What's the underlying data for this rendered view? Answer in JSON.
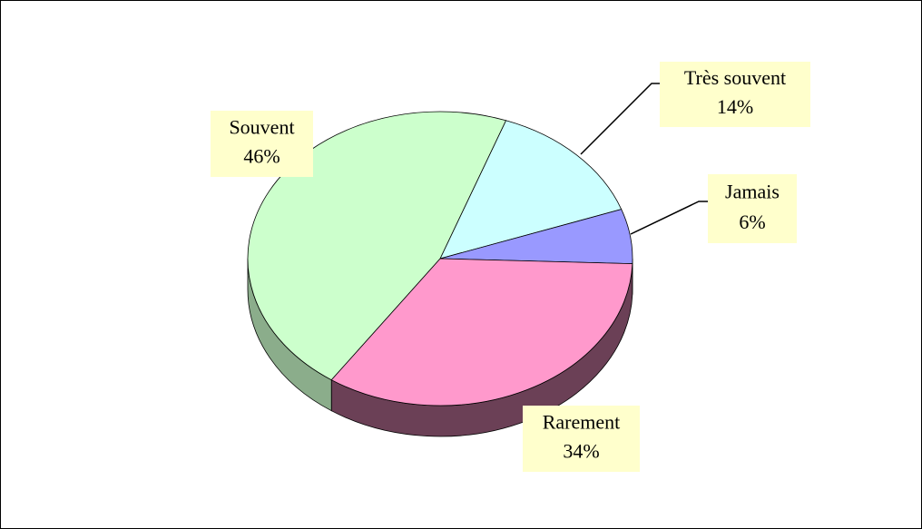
{
  "chart_data": {
    "type": "pie",
    "categories": [
      "Très souvent",
      "Jamais",
      "Rarement",
      "Souvent"
    ],
    "values": [
      14,
      6,
      34,
      46
    ],
    "value_labels": [
      "14%",
      "6%",
      "34%",
      "46%"
    ],
    "colors": [
      "#ccffff",
      "#9999ff",
      "#ff99cc",
      "#ccffcc"
    ]
  }
}
